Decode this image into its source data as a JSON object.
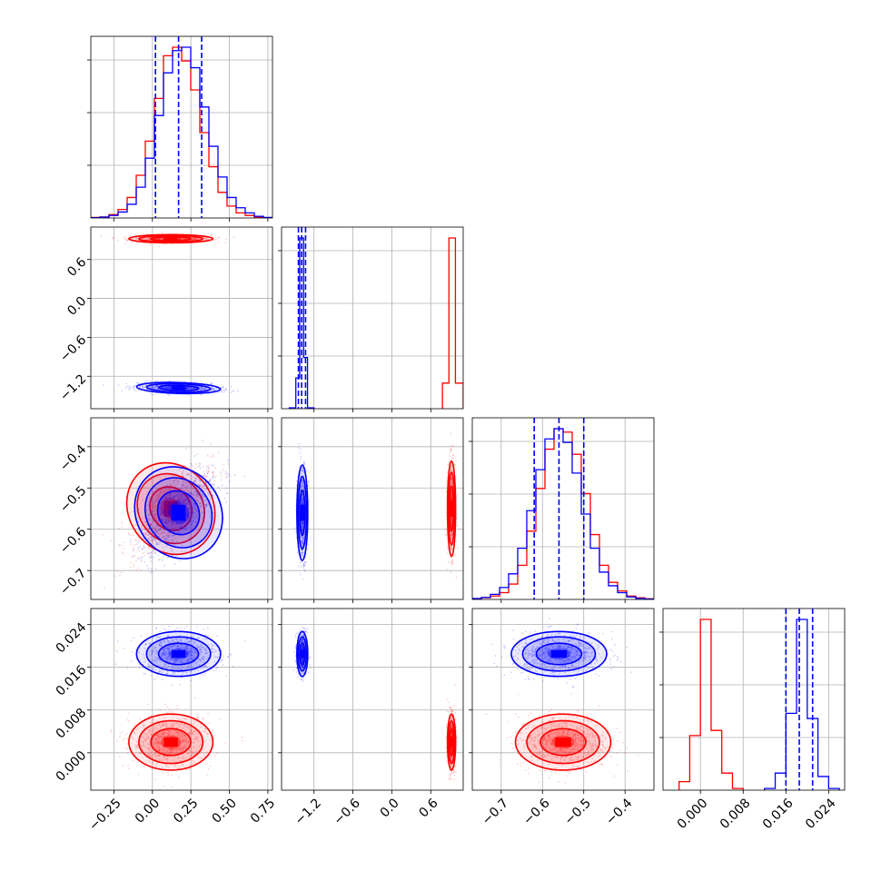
{
  "chart_data": {
    "type": "corner",
    "parameters": 4,
    "grid": true,
    "colors": {
      "series_a": "#ff0000",
      "series_b": "#0000ff",
      "quantile_lines": "#0000ff"
    },
    "series": [
      {
        "color": "#ff0000",
        "means": [
          0.12,
          0.92,
          -0.55,
          0.002
        ],
        "stds": [
          0.13,
          0.03,
          0.055,
          0.0025
        ],
        "correlations": {
          "0-2": 0.75
        },
        "samples_shown": true
      },
      {
        "color": "#0000ff",
        "means": [
          0.17,
          -1.38,
          -0.56,
          0.0185
        ],
        "stds": [
          0.13,
          0.04,
          0.055,
          0.002
        ],
        "correlations": {
          "0-2": 0.7,
          "0-1": -0.25
        },
        "samples_shown": true
      }
    ],
    "quantiles": [
      [
        0.02,
        0.17,
        0.32
      ],
      [
        -1.44,
        -1.39,
        -1.33
      ],
      [
        -0.62,
        -0.56,
        -0.5
      ],
      [
        0.016,
        0.0185,
        0.021
      ]
    ],
    "ranges": [
      [
        -0.4,
        0.78
      ],
      [
        -1.7,
        1.1
      ],
      [
        -0.77,
        -0.33
      ],
      [
        -0.007,
        0.027
      ]
    ],
    "tick_values": [
      [
        -0.25,
        0.0,
        0.25,
        0.5,
        0.75
      ],
      [
        -1.2,
        -0.6,
        0.0,
        0.6
      ],
      [
        -0.7,
        -0.6,
        -0.5,
        -0.4
      ],
      [
        0.0,
        0.008,
        0.016,
        0.024
      ]
    ],
    "tick_labels": [
      [
        "−0.25",
        "0.00",
        "0.25",
        "0.50",
        "0.75"
      ],
      [
        "−1.2",
        "−0.6",
        "0.0",
        "0.6"
      ],
      [
        "−0.7",
        "−0.6",
        "−0.5",
        "−0.4"
      ],
      [
        "0.000",
        "0.008",
        "0.016",
        "0.024"
      ]
    ],
    "histograms": [
      {
        "bins": [
          -0.4,
          0.78
        ],
        "red": [
          0.3,
          0.6,
          2,
          5,
          12,
          25,
          45,
          70,
          95,
          100,
          92,
          75,
          50,
          30,
          15,
          7,
          3,
          1.5,
          0.5,
          0.2
        ],
        "blue": [
          0.2,
          0.5,
          1.5,
          3.5,
          8,
          18,
          35,
          60,
          85,
          98,
          100,
          88,
          65,
          42,
          24,
          12,
          6,
          3,
          1,
          0.3
        ]
      },
      {
        "bins": [
          -1.7,
          1.1
        ],
        "red": [
          0,
          0,
          0,
          0,
          0,
          0,
          0,
          0,
          0,
          0,
          0,
          0,
          0,
          0,
          0,
          0,
          0,
          0,
          0,
          0,
          0,
          0,
          0,
          0,
          0,
          0,
          0,
          0,
          0,
          0,
          0,
          0,
          0,
          0,
          0,
          0,
          0,
          0,
          0,
          0,
          0,
          0,
          0,
          0,
          0,
          0,
          0,
          0,
          0,
          0,
          0,
          0,
          0,
          0,
          0,
          0,
          0,
          0,
          0,
          0,
          0,
          0,
          0,
          0,
          0,
          0,
          0,
          0,
          0,
          0,
          0,
          0,
          0,
          0,
          0,
          0,
          0,
          0,
          0,
          0,
          0,
          0,
          0,
          0,
          0,
          0,
          0,
          0,
          0,
          0,
          0,
          0,
          0,
          0,
          0,
          0,
          0,
          0,
          0,
          0,
          0,
          0,
          0,
          0,
          0,
          0,
          0,
          0,
          0,
          0,
          0,
          0,
          0,
          0,
          0,
          0,
          0,
          0,
          0,
          0,
          0,
          0,
          0,
          0,
          0,
          0,
          0,
          0,
          0,
          0,
          0,
          0,
          0,
          0,
          0,
          0,
          0,
          0,
          0,
          0,
          0,
          0,
          0,
          0,
          0,
          0,
          0,
          0,
          0,
          0,
          0,
          0,
          0,
          0,
          0,
          0,
          0,
          0,
          0,
          0,
          0,
          0,
          0,
          0,
          0,
          0,
          0,
          0,
          0,
          0,
          0,
          0,
          0,
          0,
          0,
          0,
          0,
          0,
          0,
          0,
          0,
          0,
          0,
          0,
          0,
          0,
          0,
          0,
          0,
          0,
          0,
          0,
          0,
          0,
          0,
          0,
          0,
          0,
          0,
          0
        ],
        "red_bins": [
          [
            0.78,
            0.88,
            15
          ],
          [
            0.88,
            0.98,
            100
          ],
          [
            0.98,
            1.1,
            15
          ]
        ],
        "blue_bins": [
          [
            -1.58,
            -1.48,
            0.5
          ],
          [
            -1.48,
            -1.42,
            18
          ],
          [
            -1.42,
            -1.36,
            100
          ],
          [
            -1.36,
            -1.3,
            30
          ],
          [
            -1.3,
            -1.2,
            0.5
          ]
        ]
      },
      {
        "bins": [
          -0.77,
          -0.33
        ],
        "red": [
          0.5,
          1,
          2,
          4,
          9,
          20,
          40,
          65,
          88,
          100,
          98,
          85,
          62,
          38,
          20,
          10,
          5,
          2,
          1,
          0.4
        ],
        "blue": [
          0.5,
          1.2,
          3,
          7,
          15,
          30,
          52,
          76,
          94,
          100,
          92,
          74,
          50,
          30,
          16,
          8,
          4,
          1.5,
          0.6,
          0.2
        ]
      },
      {
        "bins": [
          -0.007,
          0.027
        ],
        "red_bins": [
          [
            -0.004,
            -0.002,
            5
          ],
          [
            -0.002,
            0.0,
            32
          ],
          [
            0.0,
            0.002,
            100
          ],
          [
            0.002,
            0.004,
            35
          ],
          [
            0.004,
            0.006,
            10
          ],
          [
            0.006,
            0.008,
            1
          ]
        ],
        "blue_bins": [
          [
            0.012,
            0.014,
            1
          ],
          [
            0.014,
            0.016,
            10
          ],
          [
            0.016,
            0.018,
            45
          ],
          [
            0.018,
            0.02,
            100
          ],
          [
            0.02,
            0.022,
            42
          ],
          [
            0.022,
            0.024,
            8
          ],
          [
            0.024,
            0.026,
            1
          ]
        ]
      }
    ]
  }
}
